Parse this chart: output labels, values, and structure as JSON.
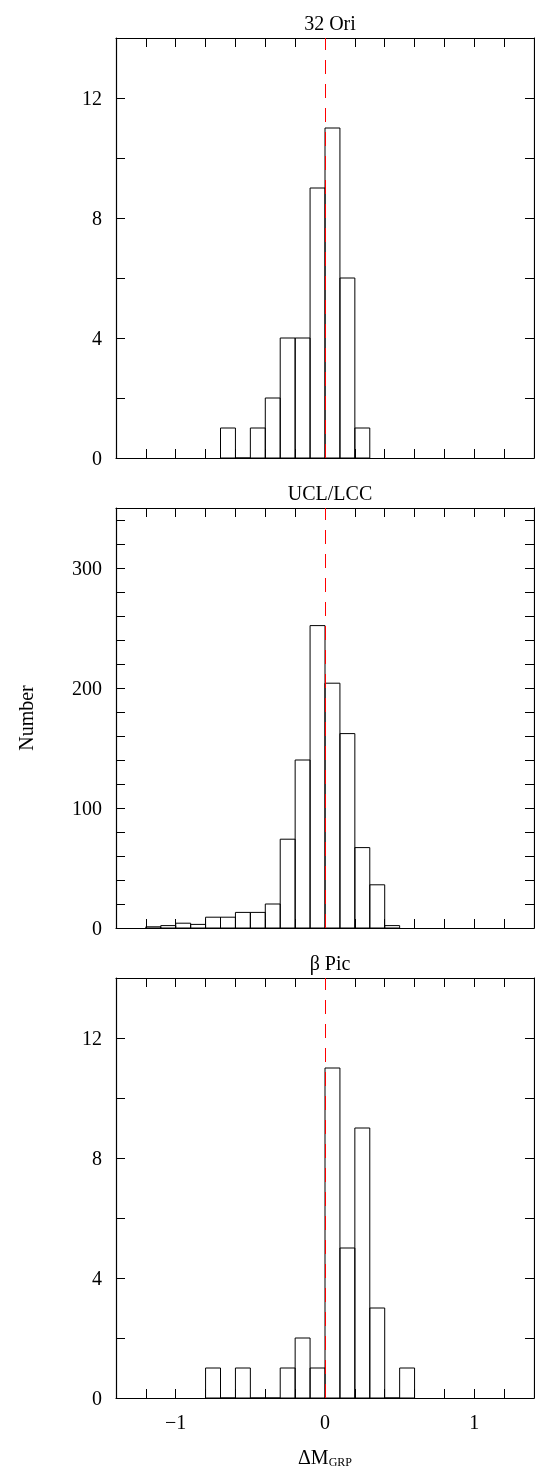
{
  "chart_data": [
    {
      "type": "histogram",
      "title": "32 Ori",
      "color": "#000000",
      "bins": [
        -0.7,
        -0.6,
        -0.5,
        -0.4,
        -0.3,
        -0.2,
        -0.1,
        0,
        0.1,
        0.2,
        0.3
      ],
      "values": [
        1,
        0,
        1,
        2,
        4,
        4,
        9,
        11,
        6,
        1
      ],
      "xlim": [
        -1.4,
        1.4
      ],
      "xticks": [
        {
          "value": -1.2,
          "label": null
        },
        {
          "value": -1,
          "label": null
        },
        {
          "value": -0.8,
          "label": null
        },
        {
          "value": -0.6,
          "label": null
        },
        {
          "value": -0.4,
          "label": null
        },
        {
          "value": -0.2,
          "label": null
        },
        {
          "value": 0,
          "label": null
        },
        {
          "value": 0.2,
          "label": null
        },
        {
          "value": 0.4,
          "label": null
        },
        {
          "value": 0.6,
          "label": null
        },
        {
          "value": 0.8,
          "label": null
        },
        {
          "value": 1,
          "label": null
        },
        {
          "value": 1.2,
          "label": null
        }
      ],
      "ylim": [
        0,
        14
      ],
      "yticks": [
        0,
        {
          "value": 2,
          "label": null
        },
        4,
        {
          "value": 6,
          "label": null
        },
        8,
        {
          "value": 10,
          "label": null
        },
        12
      ],
      "ref_lines": [
        {
          "axis": "x",
          "value": 0,
          "color": "#ff0000",
          "line_style": "dashed"
        }
      ],
      "tick_labels": "y"
    },
    {
      "type": "histogram",
      "title": "UCL/LCC",
      "ylabel": "Number",
      "color": "#000000",
      "bins": [
        -1.2,
        -1.1,
        -1.0,
        -0.9,
        -0.8,
        -0.7,
        -0.6,
        -0.5,
        -0.4,
        -0.3,
        -0.2,
        -0.1,
        0,
        0.1,
        0.2,
        0.3,
        0.4,
        0.5
      ],
      "values": [
        1,
        2,
        4,
        3,
        9,
        9,
        13,
        13,
        20,
        74,
        140,
        252,
        204,
        162,
        67,
        36,
        2
      ],
      "xlim": [
        -1.4,
        1.4
      ],
      "xticks": [
        {
          "value": -1.2,
          "label": null
        },
        {
          "value": -1,
          "label": null
        },
        {
          "value": -0.8,
          "label": null
        },
        {
          "value": -0.6,
          "label": null
        },
        {
          "value": -0.4,
          "label": null
        },
        {
          "value": -0.2,
          "label": null
        },
        {
          "value": 0,
          "label": null
        },
        {
          "value": 0.2,
          "label": null
        },
        {
          "value": 0.4,
          "label": null
        },
        {
          "value": 0.6,
          "label": null
        },
        {
          "value": 0.8,
          "label": null
        },
        {
          "value": 1,
          "label": null
        },
        {
          "value": 1.2,
          "label": null
        }
      ],
      "ylim": [
        0,
        350
      ],
      "yticks": [
        0,
        {
          "value": 20,
          "label": null
        },
        {
          "value": 40,
          "label": null
        },
        {
          "value": 60,
          "label": null
        },
        {
          "value": 80,
          "label": null
        },
        100,
        {
          "value": 120,
          "label": null
        },
        {
          "value": 140,
          "label": null
        },
        {
          "value": 160,
          "label": null
        },
        {
          "value": 180,
          "label": null
        },
        200,
        {
          "value": 220,
          "label": null
        },
        {
          "value": 240,
          "label": null
        },
        {
          "value": 260,
          "label": null
        },
        {
          "value": 280,
          "label": null
        },
        300,
        {
          "value": 320,
          "label": null
        },
        {
          "value": 340,
          "label": null
        }
      ],
      "ref_lines": [
        {
          "axis": "x",
          "value": 0,
          "color": "#ff0000",
          "line_style": "dashed"
        }
      ],
      "tick_labels": "y"
    },
    {
      "type": "histogram",
      "title": "β Pic",
      "xlabel": "ΔM$_{GRP}$",
      "color": "#000000",
      "bins": [
        -0.8,
        -0.7,
        -0.6,
        -0.5,
        -0.4,
        -0.3,
        -0.2,
        -0.1,
        0,
        0.1,
        0.2,
        0.3,
        0.4,
        0.5,
        0.6
      ],
      "values": [
        1,
        0,
        1,
        0,
        0,
        1,
        2,
        1,
        11,
        5,
        9,
        3,
        0,
        1
      ],
      "xlim": [
        -1.4,
        1.4
      ],
      "xticks": [
        {
          "value": -1.2,
          "label": null
        },
        -1,
        {
          "value": -0.8,
          "label": null
        },
        {
          "value": -0.6,
          "label": null
        },
        {
          "value": -0.4,
          "label": null
        },
        {
          "value": -0.2,
          "label": null
        },
        0,
        {
          "value": 0.2,
          "label": null
        },
        {
          "value": 0.4,
          "label": null
        },
        {
          "value": 0.6,
          "label": null
        },
        {
          "value": 0.8,
          "label": null
        },
        1,
        {
          "value": 1.2,
          "label": null
        }
      ],
      "ylim": [
        0,
        14
      ],
      "yticks": [
        0,
        {
          "value": 2,
          "label": null
        },
        4,
        {
          "value": 6,
          "label": null
        },
        8,
        {
          "value": 10,
          "label": null
        },
        12
      ],
      "ref_lines": [
        {
          "axis": "x",
          "value": 0,
          "color": "#ff0000",
          "line_style": "dashed"
        }
      ]
    }
  ]
}
